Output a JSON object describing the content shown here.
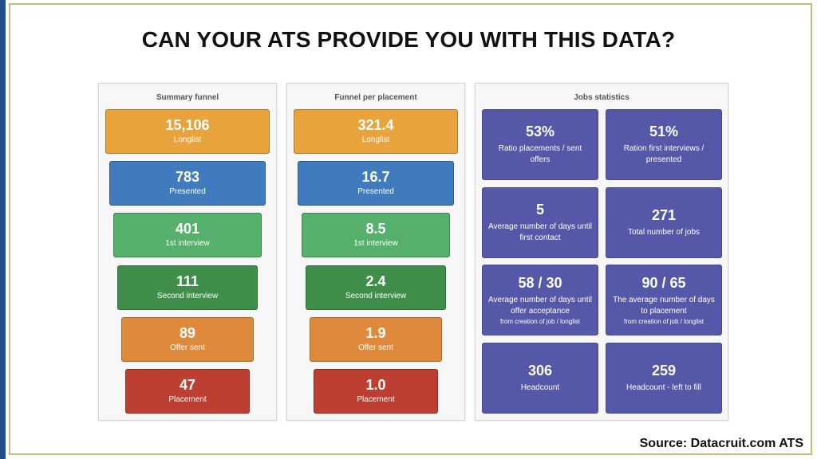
{
  "title": "CAN YOUR ATS PROVIDE YOU WITH THIS DATA?",
  "source": "Source: Datacruit.com ATS",
  "summary_funnel": {
    "title": "Summary funnel",
    "steps": [
      {
        "value": "15,106",
        "label": "Longlist"
      },
      {
        "value": "783",
        "label": "Presented"
      },
      {
        "value": "401",
        "label": "1st interview"
      },
      {
        "value": "111",
        "label": "Second interview"
      },
      {
        "value": "89",
        "label": "Offer sent"
      },
      {
        "value": "47",
        "label": "Placement"
      }
    ]
  },
  "funnel_per_placement": {
    "title": "Funnel per placement",
    "steps": [
      {
        "value": "321.4",
        "label": "Longlist"
      },
      {
        "value": "16.7",
        "label": "Presented"
      },
      {
        "value": "8.5",
        "label": "1st interview"
      },
      {
        "value": "2.4",
        "label": "Second interview"
      },
      {
        "value": "1.9",
        "label": "Offer sent"
      },
      {
        "value": "1.0",
        "label": "Placement"
      }
    ]
  },
  "jobs_statistics": {
    "title": "Jobs statistics",
    "cards": [
      {
        "value": "53%",
        "label": "Ratio placements / sent offers",
        "sub": ""
      },
      {
        "value": "51%",
        "label": "Ration first interviews / presented",
        "sub": ""
      },
      {
        "value": "5",
        "label": "Average number of days until first contact",
        "sub": ""
      },
      {
        "value": "271",
        "label": "Total number of jobs",
        "sub": ""
      },
      {
        "value": "58 / 30",
        "label": "Average number of days until offer acceptance",
        "sub": "from creation of job / longlist"
      },
      {
        "value": "90 / 65",
        "label": "The average number of days to placement",
        "sub": "from creation of job / longlist"
      },
      {
        "value": "306",
        "label": "Headcount",
        "sub": ""
      },
      {
        "value": "259",
        "label": "Headcount - left to fill",
        "sub": ""
      }
    ]
  },
  "colors": {
    "step_colors": [
      "#e8a33c",
      "#3f7bbd",
      "#54b06a",
      "#3f8e4a",
      "#df8a3a",
      "#bd3f32"
    ],
    "stat_card": "#5558a8",
    "frame": "#c8b87a",
    "left_bar": "#1f4e8c"
  }
}
